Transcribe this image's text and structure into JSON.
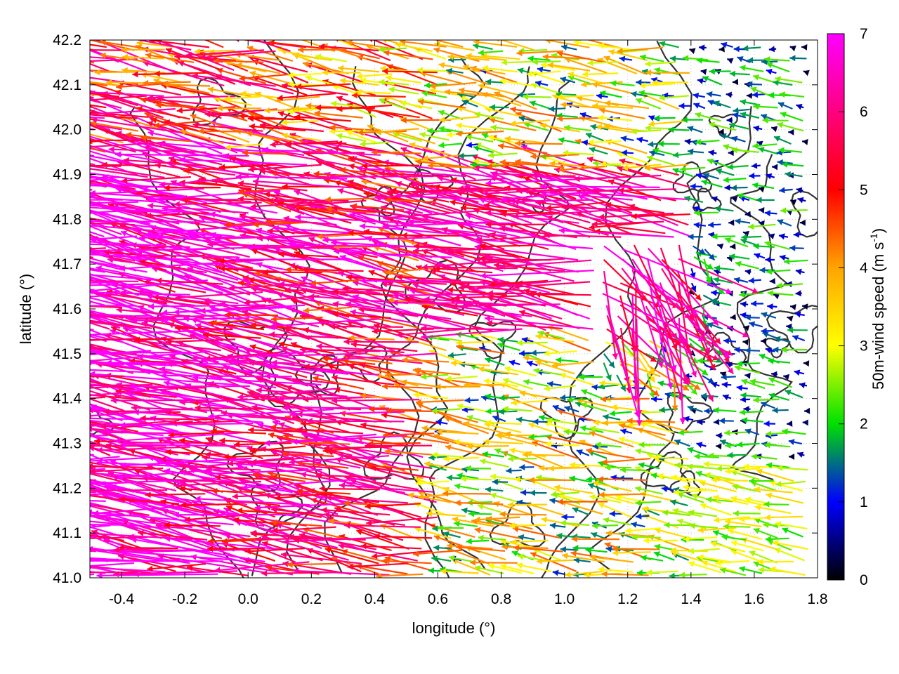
{
  "chart_data": {
    "type": "vector-field",
    "title": "",
    "xlabel": "longitude (°)",
    "ylabel": "latitude (°)",
    "xlim": [
      -0.5,
      1.8
    ],
    "ylim": [
      41.0,
      42.2
    ],
    "x_ticks": [
      "-0.4",
      "-0.2",
      "0.0",
      "0.2",
      "0.4",
      "0.6",
      "0.8",
      "1.0",
      "1.2",
      "1.4",
      "1.6",
      "1.8"
    ],
    "y_ticks": [
      "41.0",
      "41.1",
      "41.2",
      "41.3",
      "41.4",
      "41.5",
      "41.6",
      "41.7",
      "41.8",
      "41.9",
      "42.0",
      "42.1",
      "42.2"
    ],
    "grid": "dotted",
    "colorbar": {
      "label": "50m-wind speed (m s-1)",
      "label_main": "50m-wind speed (m s",
      "label_sup": "-1",
      "label_end": ")",
      "range": [
        0,
        7
      ],
      "ticks": [
        "0",
        "1",
        "2",
        "3",
        "4",
        "5",
        "6",
        "7"
      ],
      "colors": [
        "#000000",
        "#0000ff",
        "#00e000",
        "#ffff00",
        "#ffa500",
        "#ff0000",
        "#ff00ff"
      ]
    },
    "field_notes": {
      "strong_westward_zone": "west of 0.6 lon, speeds 5-7",
      "calm_zone": "east of 1.4 lon, speeds 0-2"
    }
  }
}
